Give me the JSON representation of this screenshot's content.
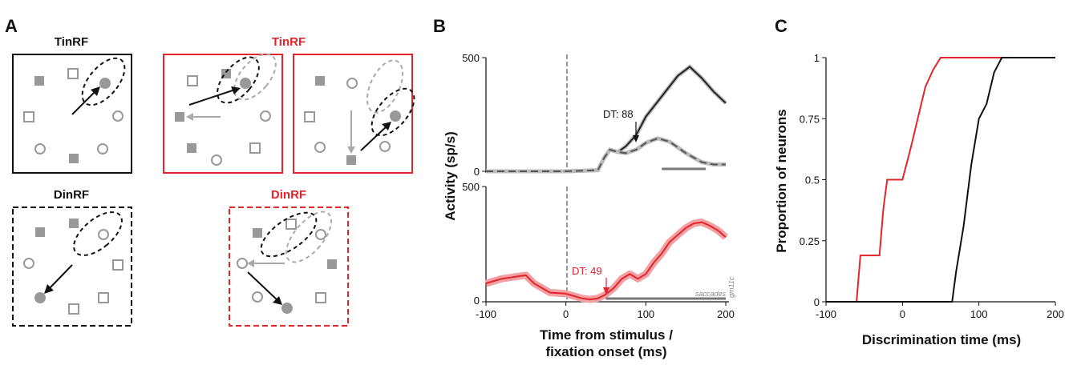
{
  "panels": {
    "a": "A",
    "b": "B",
    "c": "C"
  },
  "panel_a": {
    "top_left_title": "TinRF",
    "top_right_title": "TinRF",
    "bottom_left_title": "DinRF",
    "bottom_right_title": "DinRF",
    "black_color": "#111111",
    "red_color": "#e2252b",
    "gray_color": "#999999"
  },
  "panel_b": {
    "y_label": "Activity (sp/s)",
    "x_label_line1": "Time from stimulus /",
    "x_label_line2": "fixation onset (ms)",
    "top": {
      "ytick_top": "500",
      "ytick_bottom": "0",
      "dt_label": "DT: 88"
    },
    "bottom": {
      "ytick_top": "500",
      "ytick_bottom": "0",
      "dt_label": "DT: 49",
      "saccades_label": "saccades",
      "monkey_label": "gm11c"
    },
    "xticks": [
      "-100",
      "0",
      "100",
      "200"
    ]
  },
  "chart_data": [
    {
      "type": "line",
      "panel": "B-top",
      "title": "",
      "xlabel": "Time from stimulus / fixation onset (ms)",
      "ylabel": "Activity (sp/s)",
      "xlim": [
        -100,
        200
      ],
      "ylim": [
        0,
        500
      ],
      "series": [
        {
          "color": "#222222",
          "x": [
            -100,
            -50,
            0,
            40,
            48,
            55,
            65,
            75,
            88,
            100,
            120,
            140,
            155,
            170,
            185,
            200
          ],
          "y": [
            0,
            0,
            0,
            5,
            60,
            95,
            85,
            110,
            160,
            240,
            330,
            420,
            460,
            410,
            350,
            300
          ]
        },
        {
          "color": "#555555",
          "dashed": true,
          "x": [
            -100,
            -50,
            0,
            40,
            48,
            55,
            65,
            75,
            88,
            100,
            115,
            130,
            150,
            170,
            185,
            200
          ],
          "y": [
            0,
            0,
            0,
            5,
            60,
            95,
            85,
            80,
            95,
            125,
            145,
            130,
            80,
            40,
            30,
            30
          ]
        }
      ],
      "annotations": [
        {
          "text": "DT: 88",
          "x": 88
        }
      ],
      "bar": {
        "x": [
          120,
          175
        ]
      }
    },
    {
      "type": "line",
      "panel": "B-bottom",
      "title": "",
      "xlim": [
        -100,
        200
      ],
      "ylim": [
        0,
        500
      ],
      "series": [
        {
          "color": "#e2252b",
          "x": [
            -100,
            -80,
            -60,
            -50,
            -40,
            -20,
            0,
            10,
            20,
            30,
            40,
            49,
            60,
            70,
            80,
            90,
            100,
            110,
            120,
            130,
            140,
            150,
            160,
            170,
            180,
            190,
            200
          ],
          "y": [
            80,
            100,
            110,
            115,
            80,
            40,
            35,
            25,
            15,
            10,
            15,
            30,
            60,
            100,
            120,
            100,
            120,
            170,
            210,
            260,
            290,
            320,
            340,
            345,
            330,
            310,
            280
          ]
        }
      ],
      "annotations": [
        {
          "text": "DT: 49",
          "x": 49
        }
      ],
      "bar": {
        "x": [
          50,
          200
        ],
        "label": "saccades"
      }
    },
    {
      "type": "line",
      "panel": "C",
      "title": "",
      "xlabel": "Discrimination time (ms)",
      "ylabel": "Proportion of neurons",
      "xlim": [
        -100,
        200
      ],
      "ylim": [
        0,
        1
      ],
      "yticks": [
        "0",
        "0.25",
        "0.5",
        "0.75",
        "1"
      ],
      "xticks": [
        "-100",
        "0",
        "100",
        "200"
      ],
      "series": [
        {
          "color": "#e2252b",
          "x": [
            -100,
            -60,
            -55,
            -40,
            -30,
            -25,
            -20,
            -15,
            -10,
            0,
            10,
            20,
            30,
            40,
            50,
            80,
            130
          ],
          "y": [
            0,
            0,
            0.19,
            0.19,
            0.19,
            0.38,
            0.5,
            0.5,
            0.5,
            0.5,
            0.62,
            0.75,
            0.88,
            0.95,
            1,
            1,
            1
          ]
        },
        {
          "color": "#111111",
          "x": [
            -100,
            65,
            70,
            80,
            90,
            100,
            110,
            120,
            130,
            140,
            150,
            200
          ],
          "y": [
            0,
            0,
            0.12,
            0.31,
            0.56,
            0.75,
            0.81,
            0.94,
            1,
            1,
            1,
            1
          ]
        }
      ]
    }
  ]
}
